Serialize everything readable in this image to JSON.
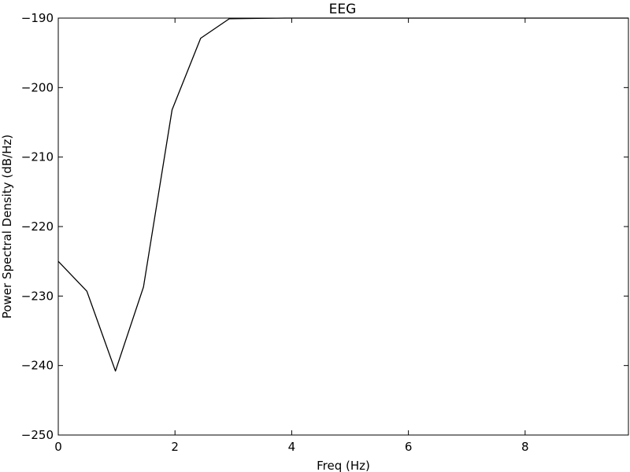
{
  "chart_data": {
    "type": "line",
    "title": "EEG",
    "xlabel": "Freq (Hz)",
    "ylabel": "Power Spectral Density (dB/Hz)",
    "xlim": [
      0,
      9.77
    ],
    "ylim": [
      -250,
      -190
    ],
    "xticks": [
      0,
      2,
      4,
      6,
      8
    ],
    "yticks": [
      -190,
      -200,
      -210,
      -220,
      -230,
      -240,
      -250
    ],
    "xtick_labels": [
      "0",
      "2",
      "4",
      "6",
      "8"
    ],
    "ytick_labels": [
      "−190",
      "−200",
      "−210",
      "−220",
      "−230",
      "−240",
      "−250"
    ],
    "grid": false,
    "series": [
      {
        "color": "#000000",
        "x": [
          0,
          0.49,
          0.98,
          1.46,
          1.95,
          2.44,
          2.93,
          3.42,
          3.91,
          4.39,
          4.88,
          5.37,
          5.86,
          6.35,
          6.84,
          7.32,
          7.81,
          8.3,
          8.79,
          9.28,
          9.77
        ],
        "y": [
          -225,
          -229.3,
          -240.8,
          -228.7,
          -203.2,
          -192.9,
          -190.1,
          -190.05,
          -190.0,
          -190.0,
          -190.0,
          -190.0,
          -190.0,
          -190.0,
          -190.0,
          -190.0,
          -190.0,
          -190.0,
          -190.0,
          -190.0,
          -190.0
        ]
      }
    ]
  }
}
